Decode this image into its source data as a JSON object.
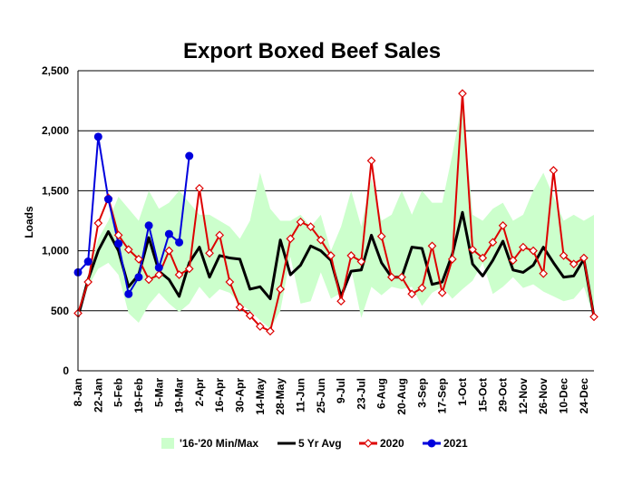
{
  "chart_data": {
    "type": "line",
    "title": "Export Boxed Beef Sales",
    "ylabel": "Loads",
    "xlabel": "",
    "ylim": [
      0,
      2500
    ],
    "y_ticks": [
      "0",
      "500",
      "1,000",
      "1,500",
      "2,000",
      "2,500"
    ],
    "y_tick_values": [
      0,
      500,
      1000,
      1500,
      2000,
      2500
    ],
    "grid": "horizontal",
    "legend_position": "bottom",
    "x_tick_labels": [
      "8-Jan",
      "22-Jan",
      "5-Feb",
      "19-Feb",
      "5-Mar",
      "19-Mar",
      "2-Apr",
      "16-Apr",
      "30-Apr",
      "14-May",
      "28-May",
      "11-Jun",
      "25-Jun",
      "9-Jul",
      "23-Jul",
      "6-Aug",
      "20-Aug",
      "3-Sep",
      "17-Sep",
      "1-Oct",
      "15-Oct",
      "29-Oct",
      "12-Nov",
      "26-Nov",
      "10-Dec",
      "24-Dec"
    ],
    "x_weeks": [
      1,
      2,
      3,
      4,
      5,
      6,
      7,
      8,
      9,
      10,
      11,
      12,
      13,
      14,
      15,
      16,
      17,
      18,
      19,
      20,
      21,
      22,
      23,
      24,
      25,
      26,
      27,
      28,
      29,
      30,
      31,
      32,
      33,
      34,
      35,
      36,
      37,
      38,
      39,
      40,
      41,
      42,
      43,
      44,
      45,
      46,
      47,
      48,
      49,
      50,
      51,
      52
    ],
    "series": [
      {
        "name": "'16-'20 Min/Max",
        "kind": "band",
        "color": "#ccffcc",
        "min": [
          450,
          700,
          850,
          900,
          800,
          480,
          400,
          550,
          650,
          560,
          490,
          560,
          700,
          600,
          680,
          650,
          560,
          500,
          420,
          350,
          500,
          950,
          560,
          580,
          820,
          600,
          650,
          850,
          440,
          700,
          630,
          700,
          680,
          700,
          540,
          650,
          700,
          600,
          680,
          750,
          900,
          640,
          700,
          780,
          690,
          720,
          660,
          620,
          580,
          600,
          700,
          440
        ],
        "max": [
          500,
          800,
          1100,
          1250,
          1450,
          1350,
          1250,
          1500,
          1350,
          1400,
          1500,
          1400,
          1300,
          1300,
          1250,
          1200,
          1100,
          1250,
          1650,
          1350,
          1250,
          1250,
          1300,
          1200,
          1300,
          1000,
          1200,
          1500,
          1200,
          1600,
          1250,
          1300,
          1500,
          1300,
          1500,
          1400,
          1400,
          1800,
          2250,
          1300,
          1250,
          1350,
          1400,
          1250,
          1300,
          1500,
          1650,
          1450,
          1250,
          1300,
          1250,
          1300
        ]
      },
      {
        "name": "5 Yr Avg",
        "kind": "line",
        "color": "#000000",
        "values": [
          450,
          760,
          1000,
          1160,
          1000,
          700,
          800,
          1110,
          830,
          760,
          620,
          900,
          1030,
          780,
          960,
          940,
          930,
          680,
          700,
          600,
          1090,
          800,
          880,
          1040,
          1000,
          920,
          620,
          830,
          840,
          1130,
          900,
          780,
          780,
          1030,
          1020,
          720,
          740,
          970,
          1320,
          890,
          790,
          920,
          1080,
          840,
          820,
          880,
          1030,
          900,
          780,
          790,
          930,
          450
        ]
      },
      {
        "name": "2020",
        "kind": "line",
        "color": "#dd0000",
        "marker": "diamond",
        "values": [
          480,
          740,
          1230,
          1440,
          1130,
          1010,
          930,
          760,
          800,
          1000,
          800,
          850,
          1520,
          980,
          1130,
          740,
          530,
          460,
          370,
          330,
          680,
          1100,
          1240,
          1200,
          1090,
          960,
          580,
          960,
          910,
          1750,
          1120,
          780,
          780,
          640,
          690,
          1040,
          650,
          930,
          2310,
          1010,
          940,
          1070,
          1210,
          920,
          1030,
          1000,
          810,
          1670,
          960,
          890,
          940,
          450
        ]
      },
      {
        "name": "2021",
        "kind": "line",
        "color": "#0000dd",
        "marker": "circle",
        "values": [
          820,
          910,
          1950,
          1430,
          1060,
          640,
          780,
          1210,
          860,
          1140,
          1070,
          1790
        ]
      }
    ]
  }
}
